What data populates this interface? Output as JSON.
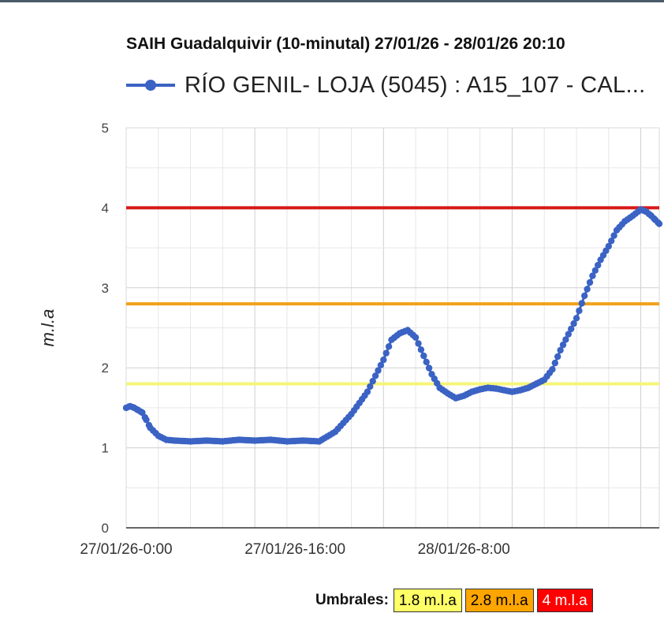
{
  "chart_data": {
    "type": "line",
    "title": "SAIH Guadalquivir (10-minutal) 27/01/26 - 28/01/26 20:10",
    "ylabel": "m.l.a",
    "xlabel": "",
    "ylim": [
      0,
      5
    ],
    "yticks": [
      "0",
      "1",
      "2",
      "3",
      "4",
      "5"
    ],
    "xticks": [
      "27/01/26-0:00",
      "27/01/26-16:00",
      "28/01/26-8:00"
    ],
    "grid": true,
    "legend_position": "top",
    "series": [
      {
        "name": "RÍO GENIL- LOJA (5045) : A15_107 - CAL...",
        "color": "#3b63c4",
        "x_hours": [
          0,
          0.5,
          1,
          1.5,
          2,
          2.5,
          3,
          4,
          5,
          6,
          8,
          10,
          12,
          14,
          16,
          18,
          20,
          22,
          24,
          26,
          28,
          30,
          32,
          33,
          34,
          35,
          36,
          37,
          38,
          39,
          40,
          41,
          42,
          43,
          44,
          45,
          46,
          47,
          48,
          49,
          50,
          51,
          52,
          53,
          54,
          55,
          56,
          57,
          58,
          59,
          60,
          61,
          62,
          63,
          64,
          64.7,
          65.3,
          65.8,
          66.3
        ],
        "values": [
          1.5,
          1.52,
          1.5,
          1.47,
          1.44,
          1.35,
          1.25,
          1.15,
          1.1,
          1.09,
          1.08,
          1.09,
          1.08,
          1.1,
          1.09,
          1.1,
          1.08,
          1.09,
          1.08,
          1.2,
          1.42,
          1.7,
          2.1,
          2.35,
          2.43,
          2.47,
          2.38,
          2.15,
          1.92,
          1.75,
          1.68,
          1.62,
          1.65,
          1.7,
          1.73,
          1.75,
          1.74,
          1.72,
          1.7,
          1.72,
          1.75,
          1.8,
          1.85,
          1.98,
          2.22,
          2.42,
          2.62,
          2.9,
          3.15,
          3.35,
          3.52,
          3.72,
          3.83,
          3.9,
          3.98,
          3.95,
          3.9,
          3.85,
          3.8
        ]
      }
    ],
    "thresholds": [
      {
        "label": "1.8 m.l.a",
        "value": 1.8,
        "color": "#ffff66",
        "line_color": "#f5f57a"
      },
      {
        "label": "2.8 m.l.a",
        "value": 2.8,
        "color": "#ffa500",
        "line_color": "#f0a21a"
      },
      {
        "label": "4 m.l.a",
        "value": 4,
        "color": "#ff0000",
        "line_color": "#d81818"
      }
    ]
  },
  "thresholds_label": "Umbrales:"
}
